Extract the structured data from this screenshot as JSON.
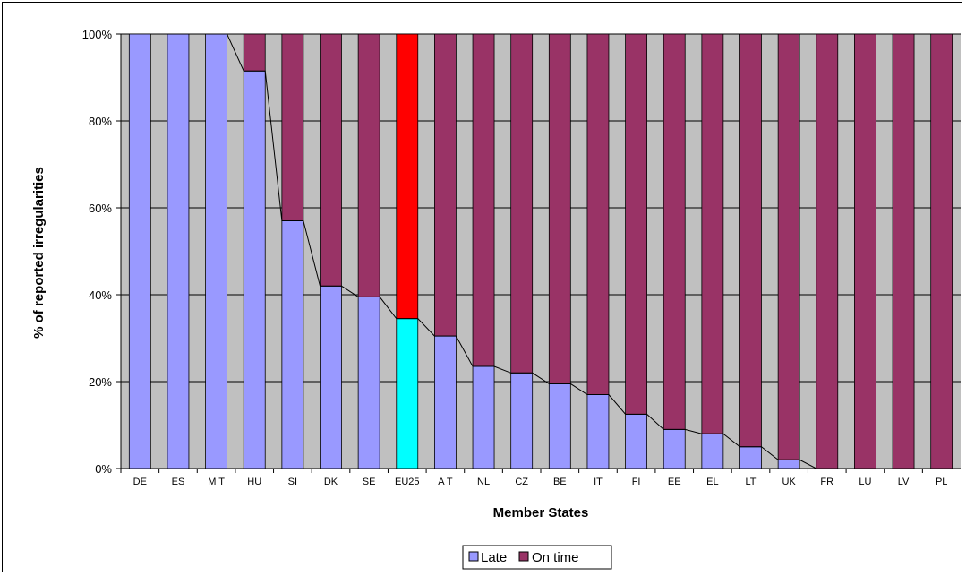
{
  "chart_data": {
    "type": "bar",
    "stacked": true,
    "percent": true,
    "categories": [
      "DE",
      "ES",
      "M T",
      "HU",
      "SI",
      "DK",
      "SE",
      "EU25",
      "A T",
      "NL",
      "CZ",
      "BE",
      "IT",
      "FI",
      "EE",
      "EL",
      "LT",
      "UK",
      "FR",
      "LU",
      "LV",
      "PL"
    ],
    "series": [
      {
        "name": "Late",
        "values": [
          100,
          100,
          100,
          91.5,
          57,
          42,
          39.5,
          34.5,
          30.5,
          23.5,
          22,
          19.5,
          17,
          12.5,
          9,
          8,
          5,
          2,
          0,
          0,
          0,
          0
        ]
      },
      {
        "name": "On time",
        "values": [
          0,
          0,
          0,
          8.5,
          43,
          58,
          60.5,
          65.5,
          69.5,
          76.5,
          78,
          80.5,
          83,
          87.5,
          91,
          92,
          95,
          98,
          100,
          100,
          100,
          100
        ]
      }
    ],
    "series_line": {
      "series": "Late",
      "connects_top_of": "Late"
    },
    "highlight": {
      "category": "EU25",
      "late_color": "#00ffff",
      "ontime_color": "#ff0000"
    },
    "xlabel": "Member States",
    "ylabel": "% of reported irregularities",
    "ylim": [
      0,
      100
    ],
    "yticks": [
      "0%",
      "20%",
      "40%",
      "60%",
      "80%",
      "100%"
    ],
    "grid": true,
    "legend_position": "bottom-center",
    "colors": {
      "late": "#9999ff",
      "ontime": "#993366",
      "plot_bg": "#c0c0c0"
    }
  }
}
